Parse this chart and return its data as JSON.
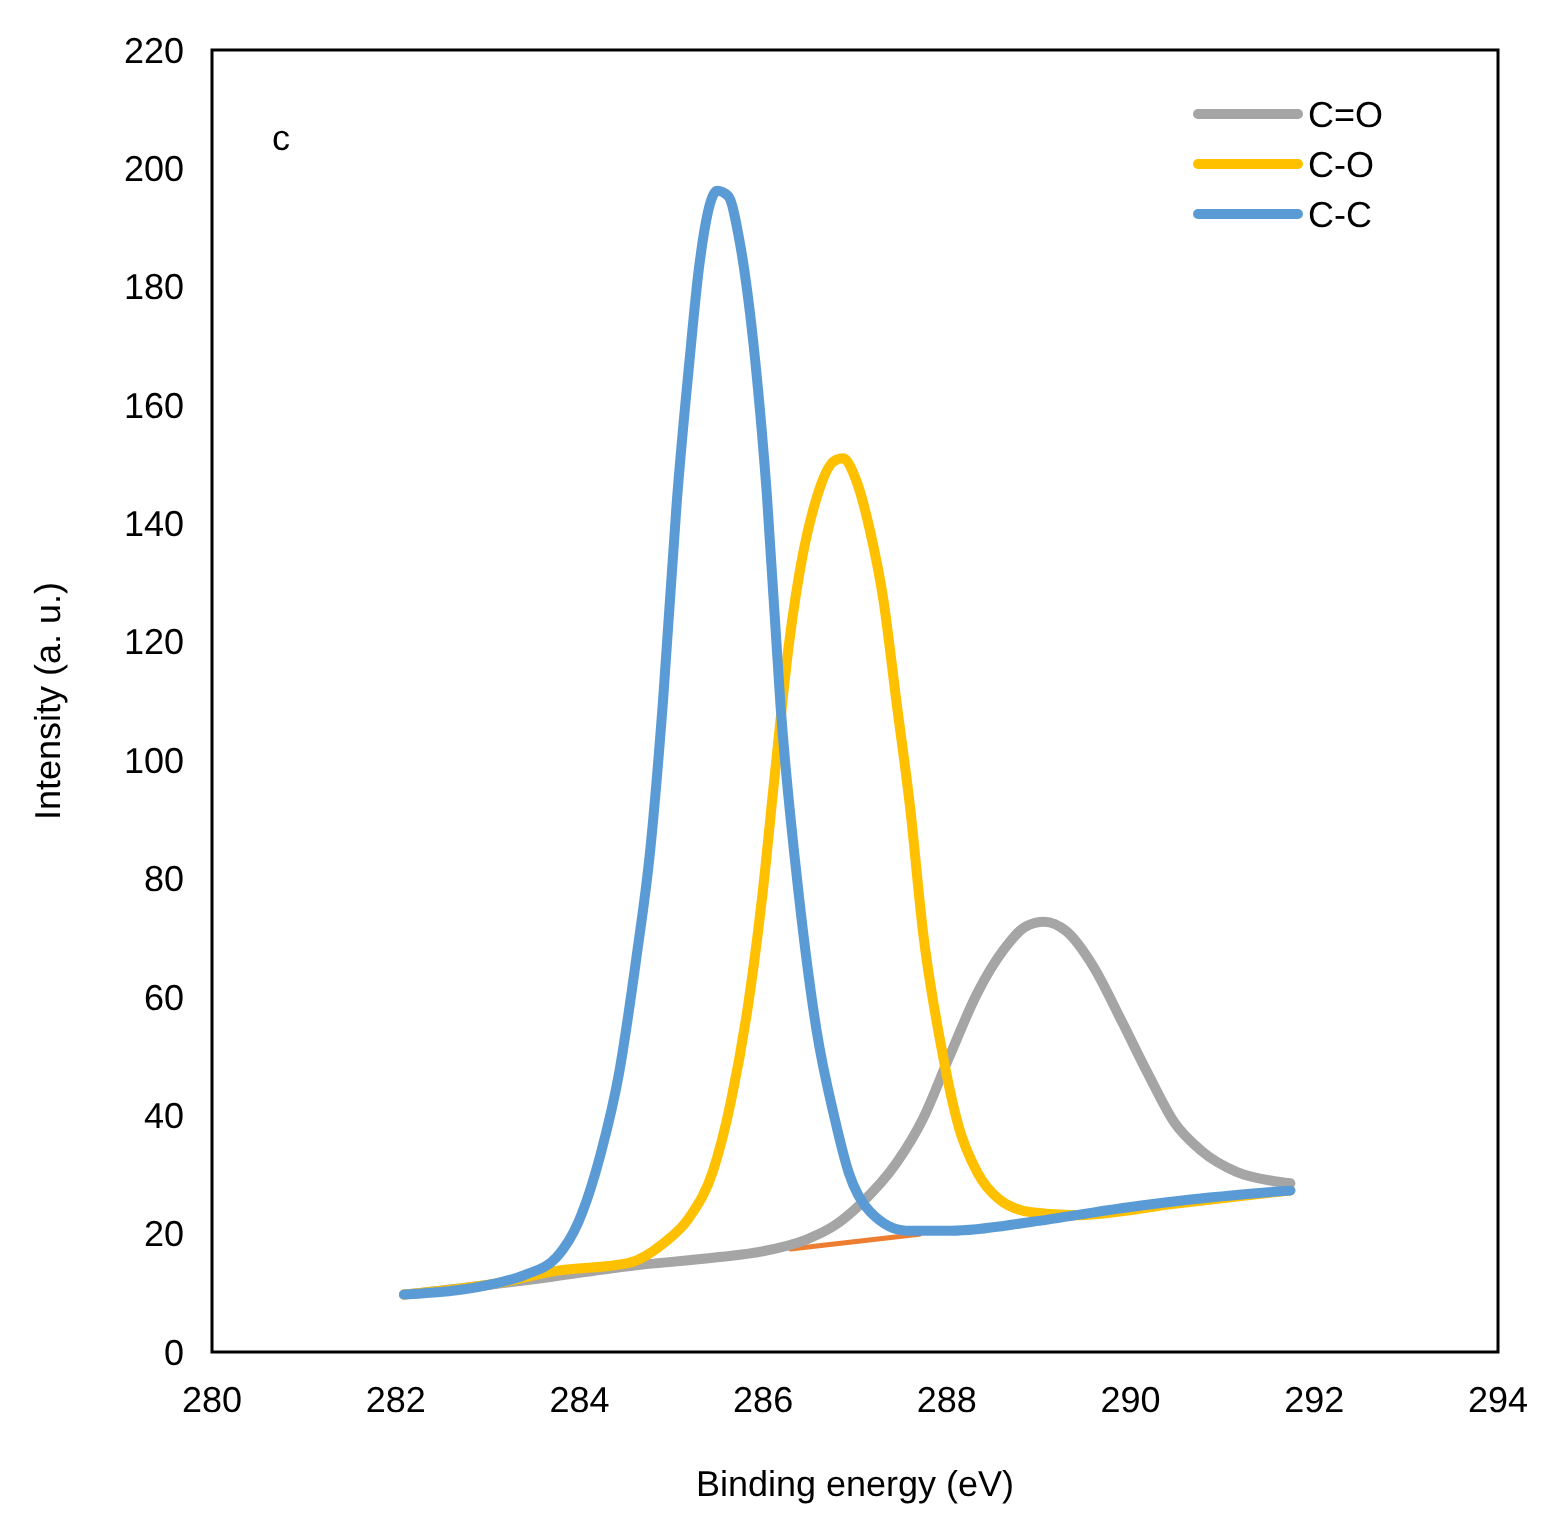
{
  "chart_data": {
    "type": "line",
    "xlabel": "Binding energy (eV)",
    "ylabel": "Intensity (a. u.)",
    "annotations": [
      "c"
    ],
    "xlim": [
      280,
      294
    ],
    "xticks": [
      280,
      282,
      284,
      286,
      288,
      290,
      292,
      294
    ],
    "ylim": [
      0,
      220
    ],
    "yticks": [
      0,
      20,
      40,
      60,
      80,
      100,
      120,
      140,
      160,
      180,
      200,
      220
    ],
    "grid": false,
    "legend": "top right",
    "marker": "none",
    "line_style": "solid",
    "series": [
      {
        "color": "#ed7d31",
        "x": [
          286.3,
          287.7
        ],
        "values": [
          17.4,
          19.9
        ]
      },
      {
        "name": "C=O",
        "color": "#a5a5a5",
        "x": [
          282.09,
          283.5,
          284.53,
          285.5,
          285.99,
          286.47,
          286.77,
          287.06,
          287.45,
          287.74,
          288.03,
          288.33,
          288.62,
          288.86,
          289.06,
          289.3,
          289.6,
          289.9,
          290.19,
          290.48,
          290.77,
          291.16,
          291.55,
          291.74
        ],
        "values": [
          9.7,
          12.3,
          14.5,
          16,
          17,
          19,
          21.3,
          25,
          31.9,
          39.4,
          50,
          60.6,
          68,
          71.9,
          72.7,
          71.1,
          65,
          56,
          47,
          38.7,
          34,
          30.4,
          28.9,
          28.5
        ]
      },
      {
        "name": "C-O",
        "color": "#ffc000",
        "x": [
          282.09,
          283.06,
          283.75,
          284.53,
          284.91,
          285.2,
          285.45,
          285.65,
          285.84,
          285.99,
          286.13,
          286.28,
          286.43,
          286.57,
          286.77,
          286.87,
          287.01,
          287.16,
          287.31,
          287.45,
          287.6,
          287.74,
          287.94,
          288.13,
          288.33,
          288.57,
          288.92,
          289.4,
          290.5,
          291.74
        ],
        "values": [
          9.7,
          11.5,
          13.7,
          15,
          18.3,
          22.8,
          30.4,
          42.4,
          59,
          77,
          98,
          119.5,
          134.6,
          143.7,
          150.5,
          151,
          147.4,
          139,
          127,
          110,
          92,
          71,
          51.5,
          38,
          30.4,
          25.8,
          23.6,
          23.1,
          25.1,
          27.3
        ]
      },
      {
        "name": "C-C",
        "color": "#5b9bd5",
        "x": [
          282.09,
          283.06,
          283.4,
          283.75,
          283.99,
          284.23,
          284.43,
          284.62,
          284.77,
          284.91,
          285.06,
          285.2,
          285.3,
          285.5,
          285.62,
          285.74,
          285.89,
          286.04,
          286.19,
          286.39,
          286.58,
          286.78,
          286.93,
          287.17,
          287.56,
          288.05,
          288.93,
          289.9,
          290.86,
          291.74
        ],
        "values": [
          9.7,
          11.5,
          13,
          16,
          22,
          33.4,
          47,
          66.6,
          84.7,
          110,
          143.7,
          167.8,
          183,
          196.2,
          195.3,
          188,
          171,
          145,
          109,
          77,
          54.5,
          39.4,
          30.4,
          23.6,
          20.5,
          20.5,
          22,
          24.3,
          26.1,
          27.3
        ]
      }
    ]
  }
}
